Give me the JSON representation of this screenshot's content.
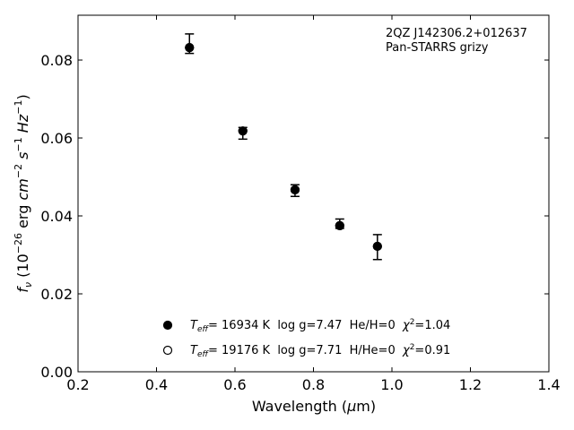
{
  "chart_data": {
    "type": "scatter",
    "title": "",
    "xlabel": "Wavelength (μm)",
    "ylabel": "f_ν (10^-26 erg cm^-2 s^-1 Hz^-1)",
    "xlim": [
      0.2,
      1.4
    ],
    "ylim": [
      0.0,
      0.0915
    ],
    "xticks": [
      "0.2",
      "0.4",
      "0.6",
      "0.8",
      "1.0",
      "1.2",
      "1.4"
    ],
    "yticks": [
      "0.00",
      "0.02",
      "0.04",
      "0.06",
      "0.08"
    ],
    "grid": false,
    "annotation": [
      "2QZ J142306.2+012637",
      "Pan-STARRS grizy"
    ],
    "observed": {
      "x": [
        0.484,
        0.62,
        0.753,
        0.867,
        0.963
      ],
      "y": [
        0.0842,
        0.0612,
        0.0465,
        0.038,
        0.032
      ],
      "yerr": [
        0.0025,
        0.0015,
        0.0015,
        0.0012,
        0.0032
      ]
    },
    "series": [
      {
        "name": "Teff= 16934 K  log g=7.47  He/H=0  χ2=1.04",
        "marker": "filled-circle",
        "x": [
          0.484,
          0.62,
          0.753,
          0.867,
          0.963
        ],
        "y": [
          0.0832,
          0.0618,
          0.0467,
          0.0375,
          0.0322
        ]
      },
      {
        "name": "Teff= 19176 K  log g=7.71  H/He=0  χ2=0.91",
        "marker": "open-circle",
        "x": [
          0.484,
          0.62,
          0.753,
          0.867,
          0.963
        ],
        "y": [
          0.0832,
          0.0618,
          0.0467,
          0.0375,
          0.0322
        ]
      }
    ],
    "legend": {
      "placement": "lower-center",
      "entries": [
        {
          "marker": "filled-circle",
          "teff_sym": "T",
          "teff_sub": "eff",
          "teff_val": "= 16934 K",
          "logg": "log g=7.47",
          "comp": "He/H=0",
          "chi_sym": "χ",
          "chi_sup": "2",
          "chi_val": "=1.04"
        },
        {
          "marker": "open-circle",
          "teff_sym": "T",
          "teff_sub": "eff",
          "teff_val": "= 19176 K",
          "logg": "log g=7.71",
          "comp": "H/He=0",
          "chi_sym": "χ",
          "chi_sup": "2",
          "chi_val": "=0.91"
        }
      ]
    },
    "axis_labels": {
      "x_main": "Wavelength (",
      "x_mu": "μ",
      "x_unit": "m)",
      "y_f": "f",
      "y_sub": "ν",
      "y_open": " (10",
      "y_exp1": "−26",
      "y_erg": " erg ",
      "y_cm": "cm",
      "y_exp2": "−2",
      "y_s": " s",
      "y_exp3": "−1",
      "y_hz": " Hz",
      "y_exp4": "−1",
      "y_close": ")"
    }
  }
}
